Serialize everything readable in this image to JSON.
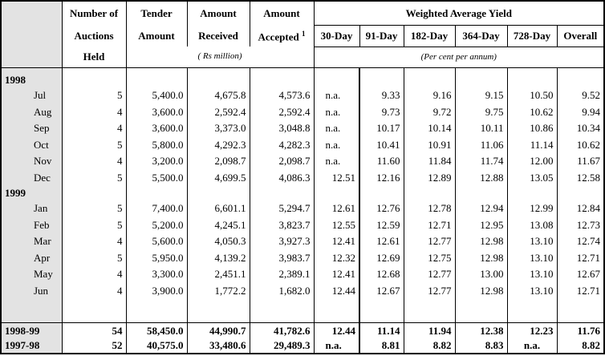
{
  "header": {
    "col1": [
      "Number of",
      "Auctions",
      "Held"
    ],
    "col2": [
      "Tender",
      "Amount"
    ],
    "col3": [
      "Amount",
      "Received"
    ],
    "col4": [
      "Amount",
      "Accepted"
    ],
    "col4_sup": "1",
    "yield_group": "Weighted Average Yield",
    "yield_cols": [
      "30-Day",
      "91-Day",
      "182-Day",
      "364-Day",
      "728-Day",
      "Overall"
    ],
    "unit_amount": "( Rs million)",
    "unit_yield": "(Per cent per annum)"
  },
  "years": [
    {
      "label": "1998",
      "rows": [
        {
          "month": "Jul",
          "auctions": "5",
          "tender": "5,400.0",
          "received": "4,675.8",
          "accepted": "4,573.6",
          "d30": "n.a.",
          "d91": "9.33",
          "d182": "9.16",
          "d364": "9.15",
          "d728": "10.50",
          "overall": "9.52"
        },
        {
          "month": "Aug",
          "auctions": "4",
          "tender": "3,600.0",
          "received": "2,592.4",
          "accepted": "2,592.4",
          "d30": "n.a.",
          "d91": "9.73",
          "d182": "9.72",
          "d364": "9.75",
          "d728": "10.62",
          "overall": "9.94"
        },
        {
          "month": "Sep",
          "auctions": "4",
          "tender": "3,600.0",
          "received": "3,373.0",
          "accepted": "3,048.8",
          "d30": "n.a.",
          "d91": "10.17",
          "d182": "10.14",
          "d364": "10.11",
          "d728": "10.86",
          "overall": "10.34"
        },
        {
          "month": "Oct",
          "auctions": "5",
          "tender": "5,800.0",
          "received": "4,292.3",
          "accepted": "4,282.3",
          "d30": "n.a.",
          "d91": "10.41",
          "d182": "10.91",
          "d364": "11.06",
          "d728": "11.14",
          "overall": "10.62"
        },
        {
          "month": "Nov",
          "auctions": "4",
          "tender": "3,200.0",
          "received": "2,098.7",
          "accepted": "2,098.7",
          "d30": "n.a.",
          "d91": "11.60",
          "d182": "11.84",
          "d364": "11.74",
          "d728": "12.00",
          "overall": "11.67"
        },
        {
          "month": "Dec",
          "auctions": "5",
          "tender": "5,500.0",
          "received": "4,699.5",
          "accepted": "4,086.3",
          "d30": "12.51",
          "d91": "12.16",
          "d182": "12.89",
          "d364": "12.88",
          "d728": "13.05",
          "overall": "12.58"
        }
      ]
    },
    {
      "label": "1999",
      "rows": [
        {
          "month": "Jan",
          "auctions": "5",
          "tender": "7,400.0",
          "received": "6,601.1",
          "accepted": "5,294.7",
          "d30": "12.61",
          "d91": "12.76",
          "d182": "12.78",
          "d364": "12.94",
          "d728": "12.99",
          "overall": "12.84"
        },
        {
          "month": "Feb",
          "auctions": "5",
          "tender": "5,200.0",
          "received": "4,245.1",
          "accepted": "3,823.7",
          "d30": "12.55",
          "d91": "12.59",
          "d182": "12.71",
          "d364": "12.95",
          "d728": "13.08",
          "overall": "12.73"
        },
        {
          "month": "Mar",
          "auctions": "4",
          "tender": "5,600.0",
          "received": "4,050.3",
          "accepted": "3,927.3",
          "d30": "12.41",
          "d91": "12.61",
          "d182": "12.77",
          "d364": "12.98",
          "d728": "13.10",
          "overall": "12.74"
        },
        {
          "month": "Apr",
          "auctions": "5",
          "tender": "5,950.0",
          "received": "4,139.2",
          "accepted": "3,983.7",
          "d30": "12.32",
          "d91": "12.69",
          "d182": "12.75",
          "d364": "12.98",
          "d728": "13.10",
          "overall": "12.71"
        },
        {
          "month": "May",
          "auctions": "4",
          "tender": "3,300.0",
          "received": "2,451.1",
          "accepted": "2,389.1",
          "d30": "12.41",
          "d91": "12.68",
          "d182": "12.77",
          "d364": "13.00",
          "d728": "13.10",
          "overall": "12.67"
        },
        {
          "month": "Jun",
          "auctions": "4",
          "tender": "3,900.0",
          "received": "1,772.2",
          "accepted": "1,682.0",
          "d30": "12.44",
          "d91": "12.67",
          "d182": "12.77",
          "d364": "12.98",
          "d728": "13.10",
          "overall": "12.71"
        }
      ]
    }
  ],
  "summary": [
    {
      "label": "1998-99",
      "auctions": "54",
      "tender": "58,450.0",
      "received": "44,990.7",
      "accepted": "41,782.6",
      "d30": "12.44",
      "d91": "11.14",
      "d182": "11.94",
      "d364": "12.38",
      "d728": "12.23",
      "overall": "11.76"
    },
    {
      "label": "1997-98",
      "auctions": "52",
      "tender": "40,575.0",
      "received": "33,480.6",
      "accepted": "29,489.3",
      "d30": "n.a.",
      "d91": "8.81",
      "d182": "8.82",
      "d364": "8.83",
      "d728": "n.a.",
      "overall": "8.82"
    }
  ]
}
